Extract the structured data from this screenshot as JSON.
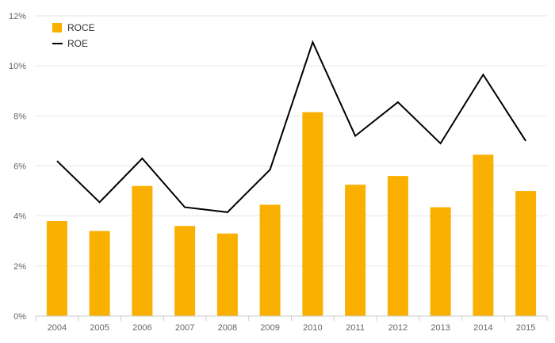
{
  "chart_data": {
    "type": "bar",
    "title": "",
    "xlabel": "",
    "ylabel": "",
    "categories": [
      "2004",
      "2005",
      "2006",
      "2007",
      "2008",
      "2009",
      "2010",
      "2011",
      "2012",
      "2013",
      "2014",
      "2015"
    ],
    "series": [
      {
        "name": "ROCE",
        "type": "bar",
        "color": "#f9b000",
        "values": [
          3.8,
          3.4,
          5.2,
          3.6,
          3.3,
          4.45,
          8.15,
          5.25,
          5.6,
          4.35,
          6.45,
          5.0
        ]
      },
      {
        "name": "ROE",
        "type": "line",
        "color": "#000000",
        "values": [
          6.2,
          4.55,
          6.3,
          4.35,
          4.15,
          5.85,
          10.95,
          7.2,
          8.55,
          6.9,
          9.65,
          7.0
        ]
      }
    ],
    "y_ticks": [
      "0%",
      "2%",
      "4%",
      "6%",
      "8%",
      "10%",
      "12%"
    ],
    "ylim": [
      0,
      12
    ],
    "grid": true,
    "legend_position": "top-left"
  }
}
